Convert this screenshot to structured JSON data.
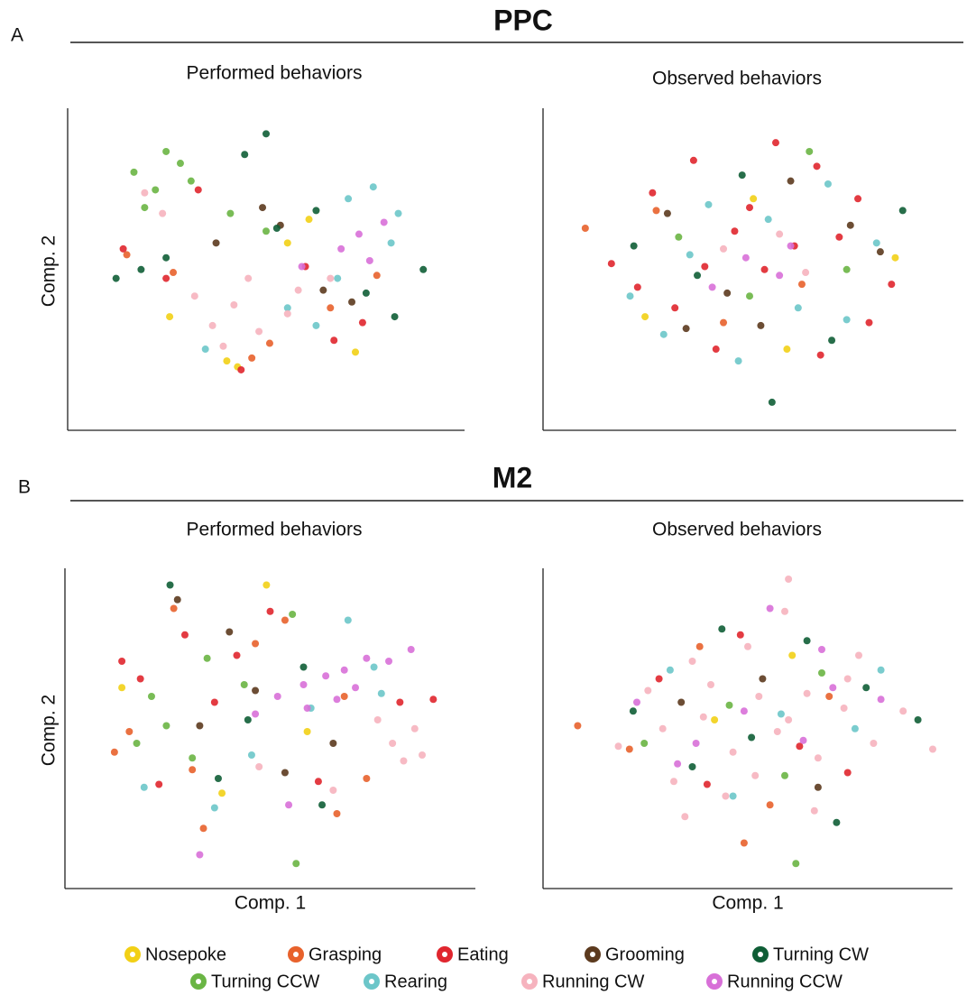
{
  "panels": [
    {
      "label": "A",
      "title": "PPC"
    },
    {
      "label": "B",
      "title": "M2"
    }
  ],
  "chart_data": [
    {
      "type": "scatter",
      "title": "Performed behaviors",
      "ylabel": "Comp. 2",
      "xlim": [
        0,
        10
      ],
      "ylim": [
        0,
        10
      ],
      "series": [
        {
          "name": "Nosepoke",
          "color": "#f2d016",
          "x": [
            3.9,
            4.2,
            5.6,
            7.5,
            6.2,
            2.3
          ],
          "y": [
            1.8,
            1.6,
            5.8,
            2.1,
            6.6,
            3.3
          ]
        },
        {
          "name": "Grasping",
          "color": "#e8622c",
          "x": [
            1.1,
            5.1,
            6.8,
            2.4,
            4.6,
            8.1
          ],
          "y": [
            5.4,
            2.4,
            3.6,
            4.8,
            1.9,
            4.7
          ]
        },
        {
          "name": "Eating",
          "color": "#e0262e",
          "x": [
            1.0,
            4.3,
            6.1,
            7.7,
            3.1,
            6.9,
            2.2
          ],
          "y": [
            5.6,
            1.5,
            5.0,
            3.1,
            7.6,
            2.5,
            4.6
          ]
        },
        {
          "name": "Grooming",
          "color": "#5c3a1e",
          "x": [
            3.6,
            5.4,
            6.6,
            4.9,
            7.4
          ],
          "y": [
            5.8,
            6.4,
            4.2,
            7.0,
            3.8
          ]
        },
        {
          "name": "Turning CW",
          "color": "#0f5e36",
          "x": [
            0.8,
            1.5,
            2.2,
            4.4,
            5.3,
            7.8,
            8.6,
            6.4,
            9.4,
            5.0
          ],
          "y": [
            4.6,
            4.9,
            5.3,
            8.8,
            6.3,
            4.1,
            3.3,
            6.9,
            4.9,
            9.5
          ]
        },
        {
          "name": "Turning CCW",
          "color": "#6ab544",
          "x": [
            1.3,
            1.9,
            2.6,
            2.9,
            1.6,
            5.0,
            4.0,
            2.2
          ],
          "y": [
            8.2,
            7.6,
            8.5,
            7.9,
            7.0,
            6.2,
            6.8,
            8.9
          ]
        },
        {
          "name": "Rearing",
          "color": "#6cc6c9",
          "x": [
            7.3,
            8.0,
            8.7,
            7.0,
            6.4,
            8.5,
            5.6,
            3.3
          ],
          "y": [
            7.3,
            7.7,
            6.8,
            4.6,
            3.0,
            5.8,
            3.6,
            2.2
          ]
        },
        {
          "name": "Running CW",
          "color": "#f6b3be",
          "x": [
            3.5,
            4.1,
            4.8,
            5.6,
            3.0,
            4.5,
            5.9,
            2.1,
            1.6,
            6.8,
            3.8
          ],
          "y": [
            3.0,
            3.7,
            2.8,
            3.4,
            4.0,
            4.6,
            4.2,
            6.8,
            7.5,
            4.6,
            2.3
          ]
        },
        {
          "name": "Running CCW",
          "color": "#d870d8",
          "x": [
            7.6,
            8.3,
            7.1,
            6.0,
            7.9
          ],
          "y": [
            6.1,
            6.5,
            5.6,
            5.0,
            5.2
          ]
        }
      ]
    },
    {
      "type": "scatter",
      "title": "Observed behaviors",
      "xlim": [
        0,
        10
      ],
      "ylim": [
        0,
        10
      ],
      "series": [
        {
          "color": "#f2d016",
          "x": [
            2.2,
            8.9,
            6.0,
            5.1
          ],
          "y": [
            3.3,
            5.3,
            2.2,
            7.3
          ]
        },
        {
          "color": "#e8622c",
          "x": [
            0.6,
            2.5,
            6.4,
            4.3
          ],
          "y": [
            6.3,
            6.9,
            4.4,
            3.1
          ]
        },
        {
          "color": "#e0262e",
          "x": [
            1.3,
            2.4,
            3.5,
            4.6,
            5.7,
            6.8,
            7.9,
            8.8,
            3.0,
            4.1,
            5.4,
            6.9,
            8.2,
            2.0,
            5.0,
            6.2,
            3.8,
            7.4
          ],
          "y": [
            5.1,
            7.5,
            8.6,
            6.2,
            9.2,
            8.4,
            7.3,
            4.4,
            3.6,
            2.2,
            4.9,
            2.0,
            3.1,
            4.3,
            7.0,
            5.7,
            5.0,
            6.0
          ]
        },
        {
          "color": "#5c3a1e",
          "x": [
            2.8,
            4.4,
            6.1,
            7.7,
            5.3,
            3.3,
            8.5
          ],
          "y": [
            6.8,
            4.1,
            7.9,
            6.4,
            3.0,
            2.9,
            5.5
          ]
        },
        {
          "color": "#0f5e36",
          "x": [
            1.9,
            4.8,
            7.2,
            5.6,
            3.6,
            9.1
          ],
          "y": [
            5.7,
            8.1,
            2.5,
            0.4,
            4.7,
            6.9
          ]
        },
        {
          "color": "#6ab544",
          "x": [
            3.1,
            6.6,
            5.0,
            7.6
          ],
          "y": [
            6.0,
            8.9,
            4.0,
            4.9
          ]
        },
        {
          "color": "#6cc6c9",
          "x": [
            1.8,
            3.9,
            5.5,
            7.1,
            8.4,
            2.7,
            4.7,
            6.3,
            7.6,
            3.4
          ],
          "y": [
            4.0,
            7.1,
            6.6,
            7.8,
            5.8,
            2.7,
            1.8,
            3.6,
            3.2,
            5.4
          ]
        },
        {
          "color": "#f6b3be",
          "x": [
            4.3,
            5.8,
            6.5
          ],
          "y": [
            5.6,
            6.1,
            4.8
          ]
        },
        {
          "color": "#d870d8",
          "x": [
            4.9,
            5.8,
            4.0,
            6.1
          ],
          "y": [
            5.3,
            4.7,
            4.3,
            5.7
          ]
        }
      ]
    },
    {
      "type": "scatter",
      "title": "Performed behaviors",
      "xlabel": "Comp. 1",
      "ylabel": "Comp. 2",
      "xlim": [
        0,
        10
      ],
      "ylim": [
        0,
        10
      ],
      "series": [
        {
          "color": "#f2d016",
          "x": [
            1.0,
            3.7,
            6.0,
            4.9
          ],
          "y": [
            6.3,
            2.7,
            4.8,
            9.8
          ]
        },
        {
          "color": "#e8622c",
          "x": [
            0.8,
            1.2,
            2.4,
            4.6,
            6.8,
            7.6,
            3.2,
            5.4,
            2.9,
            7.0
          ],
          "y": [
            4.1,
            4.8,
            9.0,
            7.8,
            2.0,
            3.2,
            1.5,
            8.6,
            3.5,
            6.0
          ]
        },
        {
          "color": "#e0262e",
          "x": [
            1.0,
            1.5,
            2.7,
            4.1,
            5.0,
            3.5,
            8.5,
            9.4,
            6.3,
            2.0
          ],
          "y": [
            7.2,
            6.6,
            8.1,
            7.4,
            8.9,
            5.8,
            5.8,
            5.9,
            3.1,
            3.0
          ]
        },
        {
          "color": "#5c3a1e",
          "x": [
            2.5,
            3.1,
            4.6,
            5.4,
            6.7,
            3.9
          ],
          "y": [
            9.3,
            5.0,
            6.2,
            3.4,
            4.4,
            8.2
          ]
        },
        {
          "color": "#0f5e36",
          "x": [
            2.3,
            4.4,
            5.9,
            3.6,
            6.4
          ],
          "y": [
            9.8,
            5.2,
            7.0,
            3.2,
            2.3
          ]
        },
        {
          "color": "#6ab544",
          "x": [
            1.4,
            2.2,
            2.9,
            3.3,
            1.8,
            4.3,
            5.7,
            5.6
          ],
          "y": [
            4.4,
            5.0,
            3.9,
            7.3,
            6.0,
            6.4,
            0.3,
            8.8
          ]
        },
        {
          "color": "#6cc6c9",
          "x": [
            7.1,
            7.8,
            8.0,
            3.5,
            4.5,
            6.1,
            1.6
          ],
          "y": [
            8.6,
            7.0,
            6.1,
            2.2,
            4.0,
            5.6,
            2.9
          ]
        },
        {
          "color": "#f6b3be",
          "x": [
            8.3,
            8.9,
            9.1,
            8.6,
            7.9,
            4.7,
            6.7
          ],
          "y": [
            4.4,
            4.9,
            4.0,
            3.8,
            5.2,
            3.6,
            2.8
          ]
        },
        {
          "color": "#d870d8",
          "x": [
            5.2,
            5.9,
            6.5,
            7.0,
            7.6,
            8.2,
            8.8,
            6.0,
            6.8,
            7.3,
            4.6,
            5.5,
            3.1
          ],
          "y": [
            6.0,
            6.4,
            6.7,
            6.9,
            7.3,
            7.2,
            7.6,
            5.6,
            5.9,
            6.3,
            5.4,
            2.3,
            0.6
          ]
        }
      ]
    },
    {
      "type": "scatter",
      "title": "Observed behaviors",
      "xlabel": "Comp. 1",
      "xlim": [
        0,
        10
      ],
      "ylim": [
        0,
        10
      ],
      "series": [
        {
          "color": "#f2d016",
          "x": [
            4.1,
            6.2
          ],
          "y": [
            5.2,
            7.4
          ]
        },
        {
          "color": "#e8622c",
          "x": [
            0.4,
            1.8,
            3.7,
            5.6,
            7.2,
            4.9
          ],
          "y": [
            5.0,
            4.2,
            7.7,
            2.3,
            6.0,
            1.0
          ]
        },
        {
          "color": "#e0262e",
          "x": [
            2.6,
            4.8,
            6.4,
            7.7,
            3.9
          ],
          "y": [
            6.6,
            8.1,
            4.3,
            3.4,
            3.0
          ]
        },
        {
          "color": "#5c3a1e",
          "x": [
            3.2,
            5.4,
            6.9
          ],
          "y": [
            5.8,
            6.6,
            2.9
          ]
        },
        {
          "color": "#0f5e36",
          "x": [
            1.9,
            3.5,
            5.1,
            6.6,
            8.2,
            9.6,
            4.3,
            7.4
          ],
          "y": [
            5.5,
            3.6,
            4.6,
            7.9,
            6.3,
            5.2,
            8.3,
            1.7
          ]
        },
        {
          "color": "#6ab544",
          "x": [
            2.2,
            4.5,
            6.0,
            7.0,
            6.3
          ],
          "y": [
            4.4,
            5.7,
            3.3,
            6.8,
            0.3
          ]
        },
        {
          "color": "#6cc6c9",
          "x": [
            2.9,
            4.6,
            7.9,
            8.6,
            5.9
          ],
          "y": [
            6.9,
            2.6,
            4.9,
            6.9,
            5.4
          ]
        },
        {
          "color": "#f6b3be",
          "x": [
            1.5,
            2.3,
            3.0,
            3.8,
            4.6,
            5.3,
            6.1,
            6.9,
            7.6,
            8.4,
            9.2,
            2.7,
            3.5,
            4.4,
            5.2,
            6.0,
            6.8,
            7.7,
            3.3,
            5.0,
            6.6,
            4.0,
            5.8,
            10.0,
            8.0,
            6.1
          ],
          "y": [
            4.3,
            6.2,
            3.1,
            5.3,
            4.1,
            6.0,
            5.2,
            3.9,
            5.6,
            4.4,
            5.5,
            4.9,
            7.2,
            2.6,
            3.3,
            8.9,
            2.1,
            6.6,
            1.9,
            7.7,
            6.1,
            6.4,
            4.8,
            4.2,
            7.4,
            10.0
          ]
        },
        {
          "color": "#d870d8",
          "x": [
            2.0,
            3.6,
            4.9,
            6.5,
            7.3,
            8.6,
            5.6,
            3.1,
            7.0
          ],
          "y": [
            5.8,
            4.4,
            5.5,
            4.5,
            6.3,
            5.9,
            9.0,
            3.7,
            7.6
          ]
        }
      ]
    }
  ]
}
